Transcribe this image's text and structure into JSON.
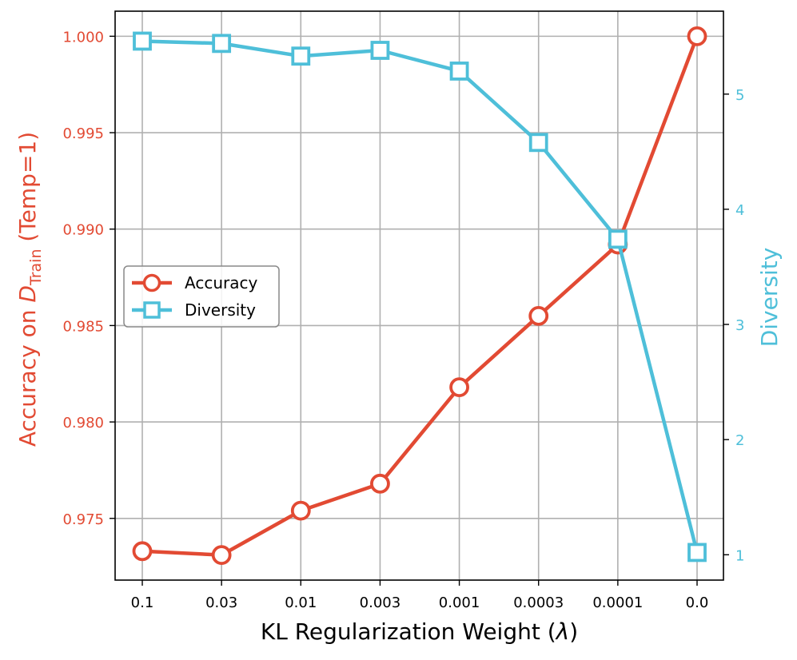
{
  "chart_data": {
    "type": "line",
    "categories": [
      "0.1",
      "0.03",
      "0.01",
      "0.003",
      "0.001",
      "0.0003",
      "0.0001",
      "0.0"
    ],
    "xlabel_prefix": "KL Regularization Weight (",
    "xlabel_symbol": "λ",
    "xlabel_suffix": ")",
    "ylabel_left_prefix": "Accuracy on ",
    "ylabel_left_symbol": "D",
    "ylabel_left_subscript": "Train",
    "ylabel_left_suffix": " (Temp=1)",
    "ylabel_right": "Diversity",
    "y_left": {
      "range": [
        0.9718,
        1.0013
      ],
      "ticks": [
        0.975,
        0.98,
        0.985,
        0.99,
        0.995,
        1.0
      ],
      "tick_labels": [
        "0.975",
        "0.980",
        "0.985",
        "0.990",
        "0.995",
        "1.000"
      ]
    },
    "y_right": {
      "range": [
        0.78,
        5.72
      ],
      "ticks": [
        1,
        2,
        3,
        4,
        5
      ],
      "tick_labels": [
        "1",
        "2",
        "3",
        "4",
        "5"
      ]
    },
    "grid": true,
    "legend_position": "center-left",
    "series": [
      {
        "name": "Accuracy",
        "axis": "left",
        "marker": "circle",
        "color": "#e24a33",
        "values": [
          0.9733,
          0.9731,
          0.9754,
          0.9768,
          0.9818,
          0.9855,
          0.9892,
          1.0
        ]
      },
      {
        "name": "Diversity",
        "axis": "right",
        "marker": "square",
        "color": "#4ebfd9",
        "values": [
          5.46,
          5.44,
          5.33,
          5.38,
          5.2,
          4.58,
          3.74,
          1.02
        ]
      }
    ]
  }
}
